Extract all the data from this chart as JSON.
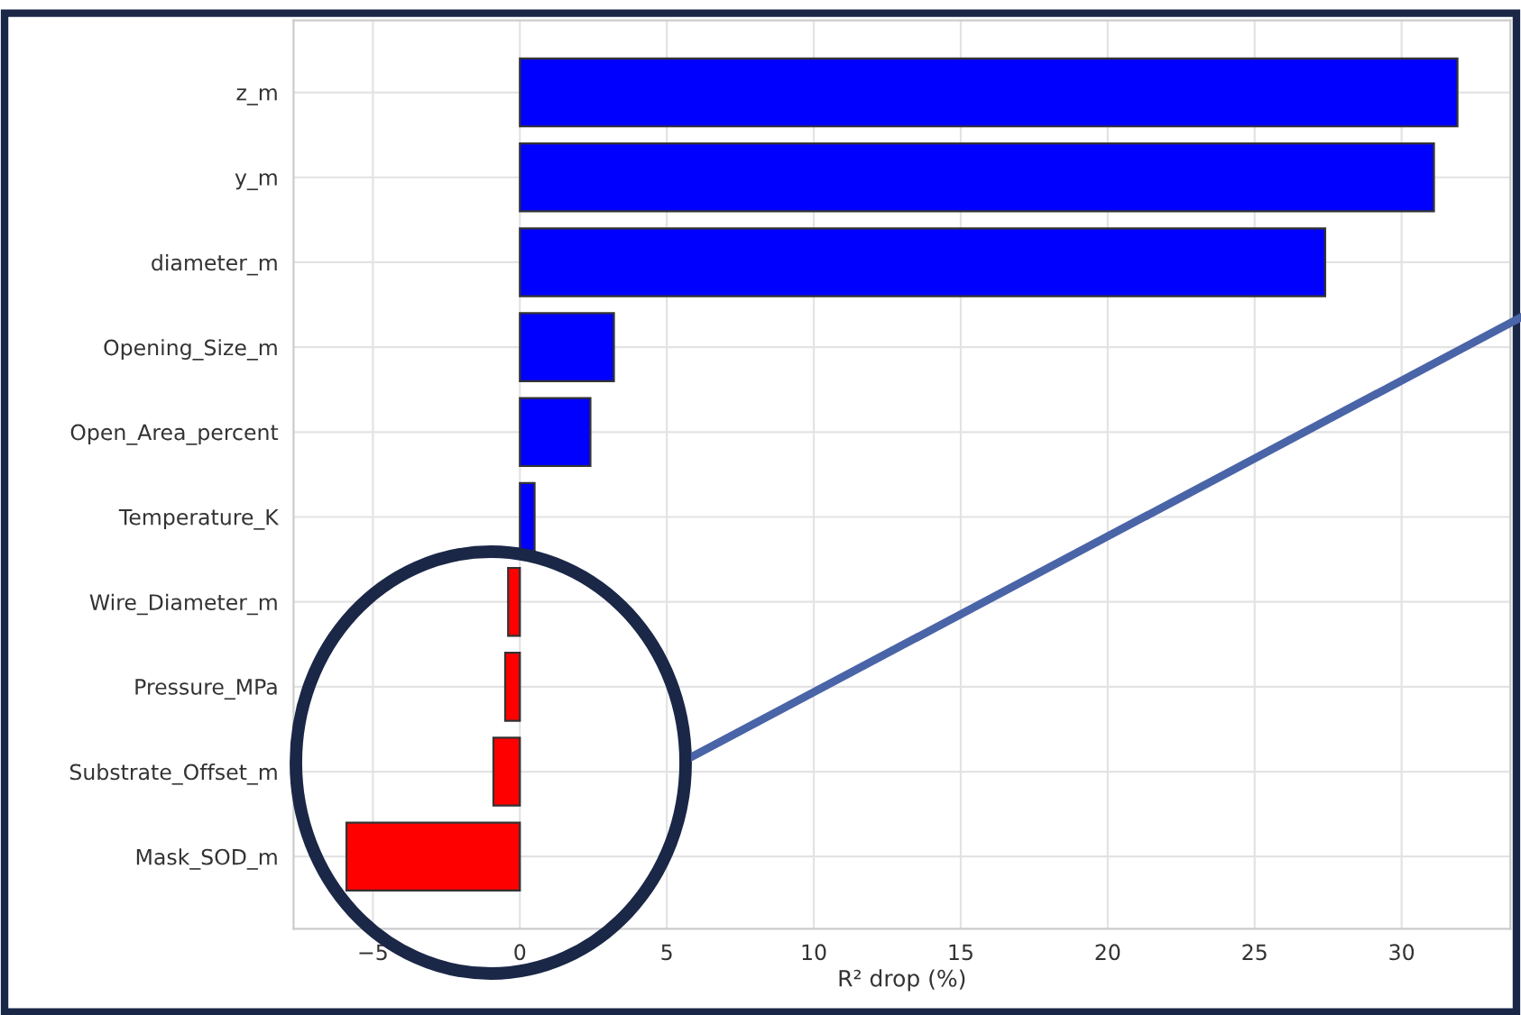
{
  "chart_data": {
    "type": "bar",
    "orientation": "horizontal",
    "xlabel": "R² drop (%)",
    "categories": [
      "z_m",
      "y_m",
      "diameter_m",
      "Opening_Size_m",
      "Open_Area_percent",
      "Temperature_K",
      "Wire_Diameter_m",
      "Pressure_MPa",
      "Substrate_Offset_m",
      "Mask_SOD_m"
    ],
    "values": [
      31.9,
      31.1,
      27.4,
      3.2,
      2.4,
      0.5,
      -0.4,
      -0.5,
      -0.9,
      -5.9
    ],
    "colors": [
      "#0000ff",
      "#0000ff",
      "#0000ff",
      "#0000ff",
      "#0000ff",
      "#0000ff",
      "#ff0000",
      "#ff0000",
      "#ff0000",
      "#ff0000"
    ],
    "xlim": [
      -7.7,
      33.7
    ],
    "xticks": [
      {
        "value": -5,
        "label": "−5"
      },
      0,
      5,
      10,
      15,
      20,
      25,
      30
    ],
    "grid": true
  }
}
